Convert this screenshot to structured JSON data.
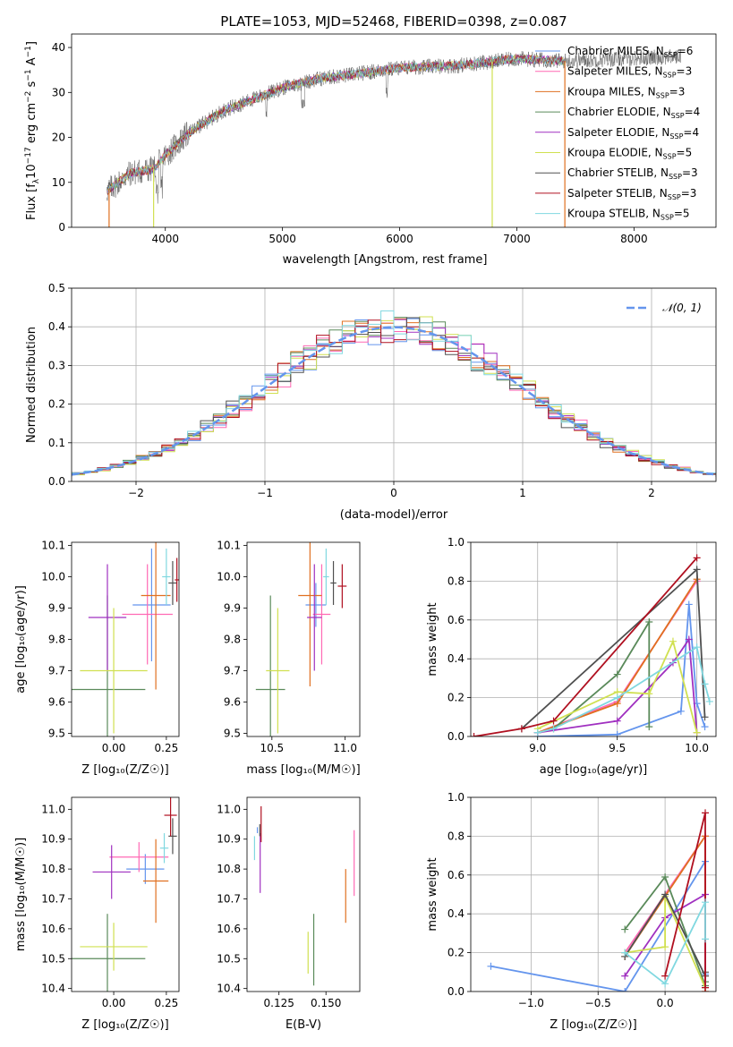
{
  "figure": {
    "title": "PLATE=1053, MJD=52468, FIBERID=0398, z=0.087"
  },
  "colors": {
    "Chabrier MILES": "#6495ed",
    "Salpeter MILES": "#ff69b4",
    "Kroupa MILES": "#e07020",
    "Chabrier ELODIE": "#5a8a5a",
    "Salpeter ELODIE": "#a030c0",
    "Kroupa ELODIE": "#d0e050",
    "Chabrier STELIB": "#505050",
    "Salpeter STELIB": "#b01020",
    "Kroupa STELIB": "#80d8e0",
    "gaussian": "#6495ed",
    "grid": "#b0b0b0"
  },
  "chart_data": [
    {
      "id": "spectrum",
      "type": "line",
      "title": "PLATE=1053, MJD=52468, FIBERID=0398, z=0.087",
      "xlabel": "wavelength [Angstrom, rest frame]",
      "ylabel_main": "Flux [f",
      "ylabel_sub": "λ",
      "ylabel_mid": "10",
      "ylabel_sup1": "−17",
      "ylabel_mid2": " erg cm",
      "ylabel_sup2": "−2",
      "ylabel_mid3": " s",
      "ylabel_sup3": "−1",
      "ylabel_mid4": " A",
      "ylabel_sup4": "−1",
      "ylabel_end": "]",
      "xlim": [
        3200,
        8700
      ],
      "ylim": [
        0,
        43
      ],
      "xticks": [
        4000,
        5000,
        6000,
        7000,
        8000
      ],
      "yticks": [
        0,
        10,
        20,
        30,
        40
      ],
      "grid": false,
      "legend_position": "right",
      "legend": [
        {
          "name": "Chabrier MILES",
          "sub": "SSP",
          "n": "=6"
        },
        {
          "name": "Salpeter MILES",
          "sub": "SSP",
          "n": "=3"
        },
        {
          "name": "Kroupa MILES",
          "sub": "SSP",
          "n": "=3"
        },
        {
          "name": "Chabrier ELODIE",
          "sub": "SSP",
          "n": "=4"
        },
        {
          "name": "Salpeter ELODIE",
          "sub": "SSP",
          "n": "=4"
        },
        {
          "name": "Kroupa ELODIE",
          "sub": "SSP",
          "n": "=5"
        },
        {
          "name": "Chabrier STELIB",
          "sub": "SSP",
          "n": "=3"
        },
        {
          "name": "Salpeter STELIB",
          "sub": "SSP",
          "n": "=3"
        },
        {
          "name": "Kroupa STELIB",
          "sub": "SSP",
          "n": "=5"
        }
      ],
      "continuum": {
        "x": [
          3500,
          3700,
          3900,
          4000,
          4200,
          4500,
          4800,
          5000,
          5300,
          5600,
          6000,
          6500,
          7000,
          7400
        ],
        "y": [
          8,
          12,
          13,
          16,
          21,
          26,
          29,
          31,
          33,
          34,
          35.5,
          36,
          37.5,
          37
        ]
      },
      "model_range": [
        3500,
        7400
      ],
      "data_range": [
        3500,
        8400
      ],
      "cutoffs": [
        {
          "model": "Kroupa ELODIE",
          "x": 3900
        },
        {
          "model": "Kroupa MILES",
          "x": 3520
        },
        {
          "model": "Kroupa ELODIE",
          "x": 6790
        },
        {
          "model": "Kroupa MILES",
          "x": 7410
        }
      ]
    },
    {
      "id": "residuals",
      "type": "step",
      "xlabel": "(data-model)/error",
      "ylabel": "Normed distribution",
      "xlim": [
        -2.5,
        2.5
      ],
      "ylim": [
        0,
        0.5
      ],
      "xticks": [
        -2,
        -1,
        0,
        1,
        2
      ],
      "yticks": [
        0.0,
        0.1,
        0.2,
        0.3,
        0.4,
        0.5
      ],
      "grid": true,
      "legend_position": "top-right",
      "reference_label": "𝒩(0, 1)"
    },
    {
      "id": "age_vs_Z",
      "type": "errorbar",
      "xlabel": "Z [log₁₀(Z/Z☉)]",
      "ylabel": "age  [log₁₀(age/yr)]",
      "xlim": [
        -0.2,
        0.31
      ],
      "ylim": [
        9.49,
        10.11
      ],
      "xticks": [
        0.0,
        0.25
      ],
      "yticks": [
        9.5,
        9.6,
        9.7,
        9.8,
        9.9,
        10.0,
        10.1
      ],
      "grid": false,
      "points": [
        {
          "model": "Chabrier MILES",
          "x": 0.18,
          "xerr": 0.09,
          "y": 9.91,
          "yerr": 0.18
        },
        {
          "model": "Salpeter MILES",
          "x": 0.16,
          "xerr": 0.12,
          "y": 9.88,
          "yerr": 0.16
        },
        {
          "model": "Kroupa MILES",
          "x": 0.2,
          "xerr": 0.07,
          "y": 9.94,
          "yerr": 0.3
        },
        {
          "model": "Chabrier ELODIE",
          "x": -0.03,
          "xerr": 0.18,
          "y": 9.64,
          "yerr": 0.3
        },
        {
          "model": "Salpeter ELODIE",
          "x": -0.03,
          "xerr": 0.09,
          "y": 9.87,
          "yerr": 0.17
        },
        {
          "model": "Kroupa ELODIE",
          "x": 0.0,
          "xerr": 0.16,
          "y": 9.7,
          "yerr": 0.2
        },
        {
          "model": "Chabrier STELIB",
          "x": 0.28,
          "xerr": 0.02,
          "y": 9.98,
          "yerr": 0.07
        },
        {
          "model": "Salpeter STELIB",
          "x": 0.3,
          "xerr": 0.01,
          "y": 9.99,
          "yerr": 0.07
        },
        {
          "model": "Kroupa STELIB",
          "x": 0.25,
          "xerr": 0.02,
          "y": 10.0,
          "yerr": 0.09
        }
      ]
    },
    {
      "id": "age_vs_mass",
      "type": "errorbar",
      "xlabel": "mass [log₁₀(M/M☉)]",
      "ylabel": "",
      "xlim": [
        10.33,
        11.1
      ],
      "ylim": [
        9.49,
        10.11
      ],
      "xticks": [
        10.5,
        11.0
      ],
      "yticks": [
        9.5,
        9.6,
        9.7,
        9.8,
        9.9,
        10.0,
        10.1
      ],
      "grid": false,
      "points": [
        {
          "model": "Chabrier MILES",
          "x": 10.8,
          "xerr": 0.07,
          "y": 9.91,
          "yerr": 0.07
        },
        {
          "model": "Salpeter MILES",
          "x": 10.84,
          "xerr": 0.06,
          "y": 9.88,
          "yerr": 0.16
        },
        {
          "model": "Kroupa MILES",
          "x": 10.76,
          "xerr": 0.08,
          "y": 9.94,
          "yerr": 0.29
        },
        {
          "model": "Chabrier ELODIE",
          "x": 10.49,
          "xerr": 0.1,
          "y": 9.64,
          "yerr": 0.3
        },
        {
          "model": "Salpeter ELODIE",
          "x": 10.79,
          "xerr": 0.05,
          "y": 9.87,
          "yerr": 0.17
        },
        {
          "model": "Kroupa ELODIE",
          "x": 10.54,
          "xerr": 0.08,
          "y": 9.7,
          "yerr": 0.2
        },
        {
          "model": "Chabrier STELIB",
          "x": 10.92,
          "xerr": 0.02,
          "y": 9.98,
          "yerr": 0.07
        },
        {
          "model": "Salpeter STELIB",
          "x": 10.98,
          "xerr": 0.03,
          "y": 9.97,
          "yerr": 0.07
        },
        {
          "model": "Kroupa STELIB",
          "x": 10.87,
          "xerr": 0.02,
          "y": 10.0,
          "yerr": 0.09
        }
      ]
    },
    {
      "id": "mass_weight_vs_age",
      "type": "line",
      "xlabel": "age  [log₁₀(age/yr)]",
      "ylabel": "mass weight",
      "xlim": [
        8.58,
        10.12
      ],
      "ylim": [
        0,
        1.0
      ],
      "xticks": [
        9.0,
        9.5,
        10.0
      ],
      "yticks": [
        0.0,
        0.2,
        0.4,
        0.6,
        0.8,
        1.0
      ],
      "grid": true,
      "series": [
        {
          "model": "Chabrier MILES",
          "x": [
            9.0,
            9.5,
            9.9,
            9.95,
            10.0,
            10.05
          ],
          "y": [
            0.0,
            0.01,
            0.13,
            0.68,
            0.17,
            0.05
          ]
        },
        {
          "model": "Salpeter MILES",
          "x": [
            9.0,
            9.5,
            10.0
          ],
          "y": [
            0.02,
            0.18,
            0.8
          ]
        },
        {
          "model": "Kroupa MILES",
          "x": [
            9.0,
            9.5,
            10.0
          ],
          "y": [
            0.02,
            0.17,
            0.81
          ]
        },
        {
          "model": "Chabrier ELODIE",
          "x": [
            9.1,
            9.5,
            9.7,
            9.7
          ],
          "y": [
            0.04,
            0.32,
            0.59,
            0.05
          ]
        },
        {
          "model": "Salpeter ELODIE",
          "x": [
            9.0,
            9.5,
            9.85,
            9.95,
            10.0
          ],
          "y": [
            0.02,
            0.08,
            0.38,
            0.5,
            0.02
          ]
        },
        {
          "model": "Kroupa ELODIE",
          "x": [
            9.0,
            9.5,
            9.7,
            9.85,
            10.0
          ],
          "y": [
            0.04,
            0.23,
            0.22,
            0.49,
            0.02
          ]
        },
        {
          "model": "Chabrier STELIB",
          "x": [
            8.9,
            10.0,
            10.05
          ],
          "y": [
            0.04,
            0.86,
            0.1
          ]
        },
        {
          "model": "Salpeter STELIB",
          "x": [
            8.6,
            8.9,
            9.1,
            10.0
          ],
          "y": [
            0.0,
            0.04,
            0.08,
            0.92
          ]
        },
        {
          "model": "Kroupa STELIB",
          "x": [
            9.0,
            9.1,
            9.5,
            10.0,
            10.05,
            10.08
          ],
          "y": [
            0.02,
            0.04,
            0.2,
            0.46,
            0.27,
            0.18
          ]
        }
      ]
    },
    {
      "id": "mass_vs_Z",
      "type": "errorbar",
      "xlabel": "Z [log₁₀(Z/Z☉)]",
      "ylabel": "mass [log₁₀(M/M☉)]",
      "xlim": [
        -0.2,
        0.31
      ],
      "ylim": [
        10.39,
        11.04
      ],
      "xticks": [
        0.0,
        0.25
      ],
      "yticks": [
        10.4,
        10.5,
        10.6,
        10.7,
        10.8,
        10.9,
        11.0
      ],
      "grid": false,
      "points": [
        {
          "model": "Chabrier MILES",
          "x": 0.15,
          "xerr": 0.09,
          "y": 10.8,
          "yerr": 0.05
        },
        {
          "model": "Salpeter MILES",
          "x": 0.12,
          "xerr": 0.14,
          "y": 10.84,
          "yerr": 0.05
        },
        {
          "model": "Kroupa MILES",
          "x": 0.2,
          "xerr": 0.06,
          "y": 10.76,
          "yerr": 0.14
        },
        {
          "model": "Chabrier ELODIE",
          "x": -0.03,
          "xerr": 0.18,
          "y": 10.5,
          "yerr": 0.15
        },
        {
          "model": "Salpeter ELODIE",
          "x": -0.01,
          "xerr": 0.09,
          "y": 10.79,
          "yerr": 0.09
        },
        {
          "model": "Kroupa ELODIE",
          "x": 0.0,
          "xerr": 0.16,
          "y": 10.54,
          "yerr": 0.08
        },
        {
          "model": "Chabrier STELIB",
          "x": 0.28,
          "xerr": 0.02,
          "y": 10.91,
          "yerr": 0.06
        },
        {
          "model": "Salpeter STELIB",
          "x": 0.27,
          "xerr": 0.03,
          "y": 10.98,
          "yerr": 0.07
        },
        {
          "model": "Kroupa STELIB",
          "x": 0.24,
          "xerr": 0.02,
          "y": 10.87,
          "yerr": 0.05
        }
      ]
    },
    {
      "id": "mass_vs_ebv",
      "type": "errorbar",
      "xlabel": "E(B-V)",
      "ylabel": "",
      "xlim": [
        0.108,
        0.168
      ],
      "ylim": [
        10.39,
        11.04
      ],
      "xticks": [
        0.125,
        0.15
      ],
      "yticks": [
        10.4,
        10.5,
        10.6,
        10.7,
        10.8,
        10.9,
        11.0
      ],
      "grid": false,
      "points": [
        {
          "model": "Chabrier MILES",
          "x": 0.1135,
          "xerr": 0.0,
          "y": 10.93,
          "yerr": 0.01
        },
        {
          "model": "Salpeter MILES",
          "x": 0.165,
          "xerr": 0.0,
          "y": 10.82,
          "yerr": 0.11
        },
        {
          "model": "Kroupa MILES",
          "x": 0.1605,
          "xerr": 0.0,
          "y": 10.71,
          "yerr": 0.09
        },
        {
          "model": "Chabrier ELODIE",
          "x": 0.1435,
          "xerr": 0.0,
          "y": 10.53,
          "yerr": 0.12
        },
        {
          "model": "Salpeter ELODIE",
          "x": 0.115,
          "xerr": 0.0,
          "y": 10.82,
          "yerr": 0.1
        },
        {
          "model": "Kroupa ELODIE",
          "x": 0.1405,
          "xerr": 0.0,
          "y": 10.52,
          "yerr": 0.07
        },
        {
          "model": "Chabrier STELIB",
          "x": 0.1148,
          "xerr": 0.0,
          "y": 10.93,
          "yerr": 0.02
        },
        {
          "model": "Salpeter STELIB",
          "x": 0.1155,
          "xerr": 0.0,
          "y": 10.95,
          "yerr": 0.06
        },
        {
          "model": "Kroupa STELIB",
          "x": 0.112,
          "xerr": 0.0,
          "y": 10.87,
          "yerr": 0.04
        }
      ]
    },
    {
      "id": "mass_weight_vs_Z",
      "type": "line",
      "xlabel": "Z [log₁₀(Z/Z☉)]",
      "ylabel": "mass weight",
      "xlim": [
        -1.45,
        0.38
      ],
      "ylim": [
        0,
        1.0
      ],
      "xticks": [
        -1.0,
        -0.5,
        0.0
      ],
      "yticks": [
        0.0,
        0.2,
        0.4,
        0.6,
        0.8,
        1.0
      ],
      "grid": true,
      "series": [
        {
          "model": "Chabrier MILES",
          "x": [
            -1.3,
            -0.3,
            0.3,
            0.3
          ],
          "y": [
            0.13,
            0.0,
            0.67,
            0.09
          ]
        },
        {
          "model": "Salpeter MILES",
          "x": [
            -0.3,
            0.3,
            0.3
          ],
          "y": [
            0.2,
            0.8,
            0.0
          ]
        },
        {
          "model": "Kroupa MILES",
          "x": [
            -0.3,
            0.3,
            0.3
          ],
          "y": [
            0.18,
            0.8,
            0.0
          ]
        },
        {
          "model": "Chabrier ELODIE",
          "x": [
            -0.3,
            0.0,
            0.3,
            0.3
          ],
          "y": [
            0.32,
            0.59,
            0.03,
            0.05
          ]
        },
        {
          "model": "Salpeter ELODIE",
          "x": [
            -0.3,
            0.0,
            0.3,
            0.3
          ],
          "y": [
            0.08,
            0.38,
            0.5,
            0.02
          ]
        },
        {
          "model": "Kroupa ELODIE",
          "x": [
            -0.3,
            0.0,
            0.0,
            0.3
          ],
          "y": [
            0.2,
            0.23,
            0.49,
            0.02
          ]
        },
        {
          "model": "Chabrier STELIB",
          "x": [
            -0.3,
            0.0,
            0.3,
            0.3
          ],
          "y": [
            0.18,
            0.5,
            0.08,
            0.1
          ]
        },
        {
          "model": "Salpeter STELIB",
          "x": [
            0.0,
            0.3,
            0.3
          ],
          "y": [
            0.08,
            0.92,
            0.02
          ]
        },
        {
          "model": "Kroupa STELIB",
          "x": [
            -0.3,
            0.0,
            0.3,
            0.3
          ],
          "y": [
            0.2,
            0.04,
            0.46,
            0.27
          ]
        }
      ]
    }
  ]
}
